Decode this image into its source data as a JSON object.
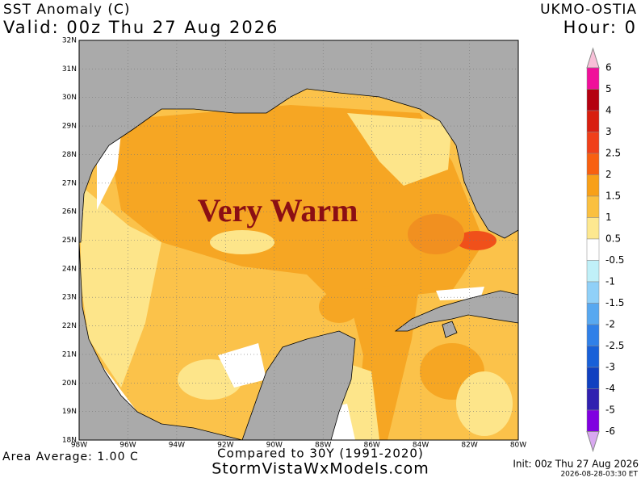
{
  "header": {
    "title": "SST Anomaly (C)",
    "valid": "Valid: 00z Thu 27 Aug 2026",
    "source": "UKMO-OSTIA",
    "hour": "Hour: 0"
  },
  "map": {
    "lat_labels": [
      "32N",
      "31N",
      "30N",
      "29N",
      "28N",
      "27N",
      "26N",
      "25N",
      "24N",
      "23N",
      "22N",
      "21N",
      "20N",
      "19N",
      "18N"
    ],
    "lon_labels": [
      "98W",
      "96W",
      "94W",
      "92W",
      "90W",
      "88W",
      "86W",
      "84W",
      "82W",
      "80W"
    ],
    "annotation": "Very Warm"
  },
  "colorbar": {
    "labels": [
      6,
      5,
      4,
      3,
      2.5,
      2,
      1.5,
      1,
      0.5,
      -0.5,
      -1,
      -1.5,
      -2,
      -2.5,
      -3,
      -4,
      -5,
      -6
    ],
    "colors": [
      "#f0109a",
      "#b40010",
      "#d81f10",
      "#f0401a",
      "#f86010",
      "#f8a018",
      "#fac040",
      "#fde890",
      "#ffffff",
      "#c0f0f8",
      "#90d0f8",
      "#58a8f0",
      "#3080e8",
      "#1860d8",
      "#1040c0",
      "#3020b0",
      "#8000e0"
    ],
    "top_color": "#f8c0d8",
    "bottom_color": "#d8a8f0"
  },
  "footer": {
    "area_average": "Area Average: 1.00 C",
    "compared": "Compared to 30Y (1991-2020)",
    "site": "StormVistaWxModels.com",
    "init": "Init: 00z Thu 27 Aug 2026",
    "timestamp": "2026-08-28-03:30 ET"
  }
}
